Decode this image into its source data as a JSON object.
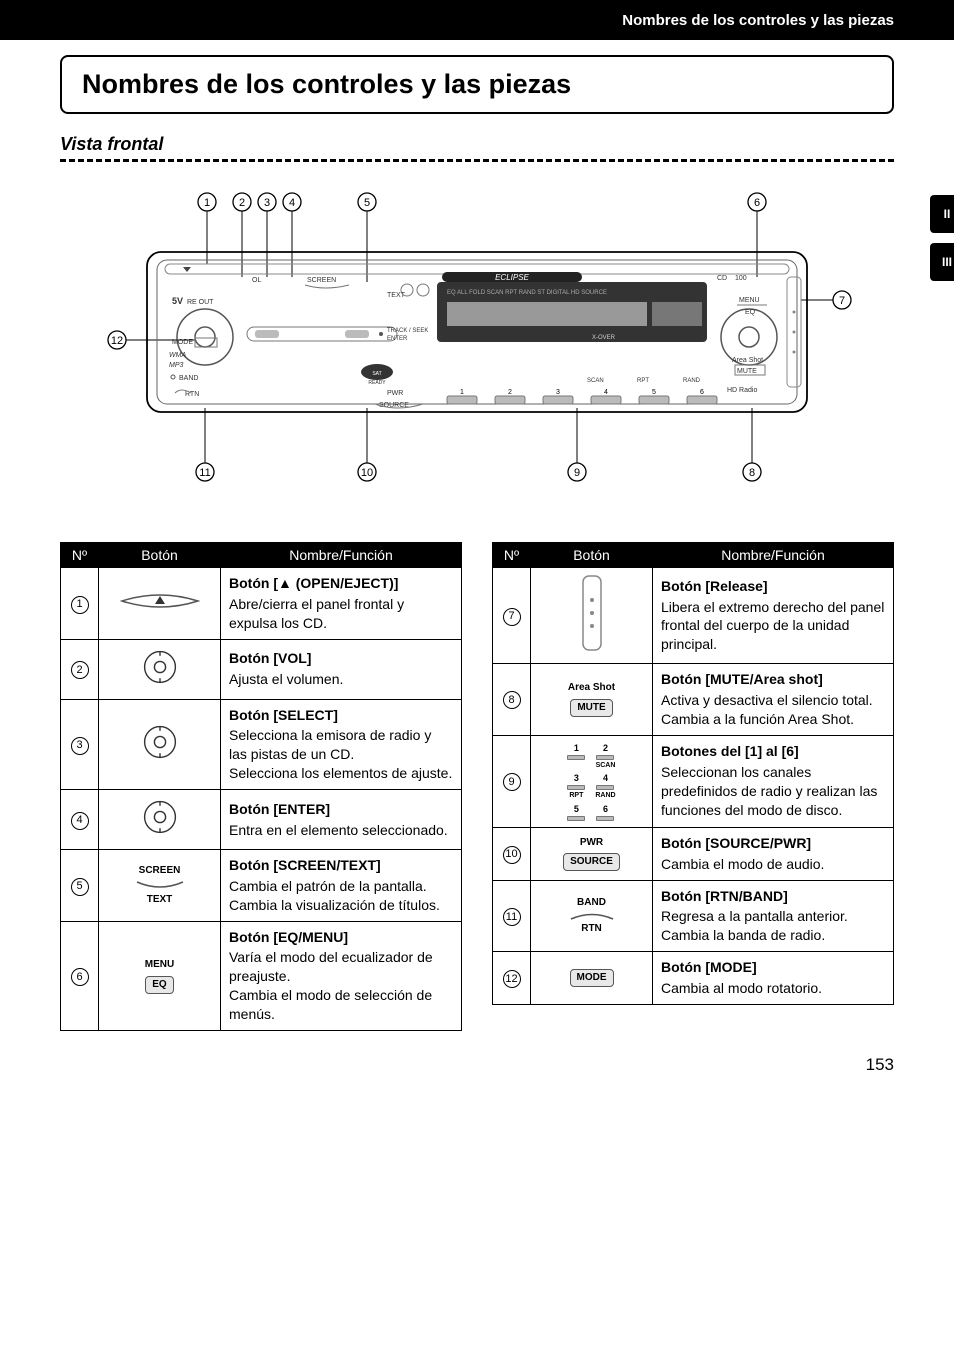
{
  "header": {
    "breadcrumb": "Nombres de los controles y las piezas"
  },
  "tabs": {
    "a": "II",
    "b": "III"
  },
  "title": "Nombres de los controles y las piezas",
  "subheading": "Vista frontal",
  "diagram": {
    "callouts_top": [
      "1",
      "2",
      "3",
      "4",
      "5",
      "6"
    ],
    "callouts_right": [
      "7"
    ],
    "callouts_left": [
      "12"
    ],
    "callouts_bottom": [
      "11",
      "10",
      "9",
      "8"
    ],
    "brand": "ECLIPSE",
    "face_labels": [
      "5V",
      "OL",
      "SCREEN",
      "TEXT",
      "TRACK / SEEK",
      "ENTER",
      "MODE",
      "WMA",
      "MP3",
      "BAND",
      "RTN",
      "SOURCE",
      "PWR",
      "EQ",
      "FOLD",
      "SCAN",
      "RPT",
      "RAND",
      "ST",
      "DIGITAL",
      "HD",
      "SOURCE",
      "CD",
      "100",
      "MENU",
      "EQ",
      "Area Shot",
      "MUTE",
      "HD Radio",
      "SAT RADIO READY",
      "SCAN",
      "RPT",
      "RAND",
      "1",
      "2",
      "3",
      "4",
      "5",
      "6",
      "X-OVER"
    ]
  },
  "table_headers": {
    "num": "Nº",
    "btn": "Botón",
    "desc": "Nombre/Función"
  },
  "left_rows": [
    {
      "n": "1",
      "btn_type": "eject",
      "name": "Botón [▲ (OPEN/EJECT)]",
      "desc": "Abre/cierra el panel frontal y expulsa los CD."
    },
    {
      "n": "2",
      "btn_type": "knob",
      "name": "Botón [VOL]",
      "desc": "Ajusta el volumen."
    },
    {
      "n": "3",
      "btn_type": "knob",
      "name": "Botón [SELECT]",
      "desc": "Selecciona la emisora de radio y las pistas de un CD.\nSelecciona los elementos de ajuste."
    },
    {
      "n": "4",
      "btn_type": "knob",
      "name": "Botón [ENTER]",
      "desc": "Entra en el elemento seleccionado."
    },
    {
      "n": "5",
      "btn_type": "screen_text",
      "top": "SCREEN",
      "bottom": "TEXT",
      "name": "Botón [SCREEN/TEXT]",
      "desc": "Cambia el patrón de la pantalla.\nCambia la visualización de títulos."
    },
    {
      "n": "6",
      "btn_type": "menu_eq",
      "top": "MENU",
      "bottom": "EQ",
      "name": "Botón [EQ/MENU]",
      "desc": "Varía el modo del ecualizador de preajuste.\nCambia el modo de selección de menús."
    }
  ],
  "right_rows": [
    {
      "n": "7",
      "btn_type": "release",
      "name": "Botón [Release]",
      "desc": "Libera el extremo derecho del panel frontal del cuerpo de la unidad principal."
    },
    {
      "n": "8",
      "btn_type": "area_mute",
      "top": "Area Shot",
      "bottom": "MUTE",
      "name": "Botón [MUTE/Area shot]",
      "desc": "Activa y desactiva el silencio total.\nCambia a la función Area Shot."
    },
    {
      "n": "9",
      "btn_type": "presets",
      "labels": [
        "1",
        "2",
        "3",
        "4",
        "5",
        "6"
      ],
      "sub": [
        "",
        "SCAN",
        "RPT",
        "RAND",
        "",
        ""
      ],
      "name": "Botones del [1] al [6]",
      "desc": "Seleccionan los canales predefinidos de radio y realizan las funciones del modo de disco."
    },
    {
      "n": "10",
      "btn_type": "source_pwr",
      "top": "PWR",
      "bottom": "SOURCE",
      "name": "Botón [SOURCE/PWR]",
      "desc": "Cambia el modo de audio."
    },
    {
      "n": "11",
      "btn_type": "rtn_band",
      "top": "BAND",
      "bottom": "RTN",
      "name": "Botón [RTN/BAND]",
      "desc": "Regresa a la pantalla anterior.\nCambia la banda de radio."
    },
    {
      "n": "12",
      "btn_type": "mode",
      "label": "MODE",
      "name": "Botón [MODE]",
      "desc": "Cambia al modo rotatorio."
    }
  ],
  "page_number": "153"
}
